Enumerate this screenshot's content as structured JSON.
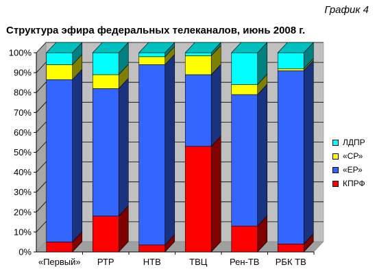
{
  "caption": "График 4",
  "chart_data": {
    "type": "bar",
    "stacked": true,
    "three_d": true,
    "title": "Структура эфира федеральных телеканалов, июнь 2008 г.",
    "categories": [
      "«Первый»",
      "РТР",
      "НТВ",
      "ТВЦ",
      "Рен-ТВ",
      "РБК ТВ"
    ],
    "series": [
      {
        "name": "КПРФ",
        "color": "#ff0000",
        "values": [
          5,
          18,
          3.5,
          53,
          13,
          4
        ]
      },
      {
        "name": "«ЕР»",
        "color": "#3366ff",
        "values": [
          81.5,
          64,
          90.5,
          36,
          66,
          87
        ]
      },
      {
        "name": "«СР»",
        "color": "#ffff00",
        "values": [
          7.5,
          7,
          4,
          9.5,
          5,
          1
        ]
      },
      {
        "name": "ЛДПР",
        "color": "#00ffff",
        "values": [
          6,
          11,
          2,
          1.5,
          16,
          8
        ]
      }
    ],
    "ylim": [
      0,
      100
    ],
    "yticks": [
      "0%",
      "10%",
      "20%",
      "30%",
      "40%",
      "50%",
      "60%",
      "70%",
      "80%",
      "90%",
      "100%"
    ],
    "grid": true,
    "legend_position": "right",
    "colors": {
      "wall": "#c0c0c0",
      "floor": "#a0a0a0"
    }
  }
}
